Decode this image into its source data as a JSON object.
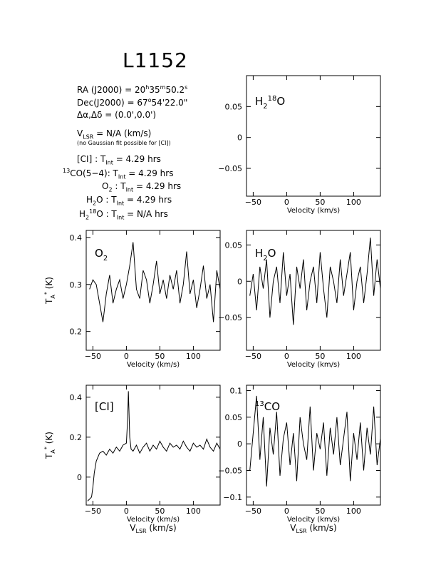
{
  "header": {
    "title": "L1152",
    "ra": "RA (J2000) =  20h35m50.2s",
    "dec": "Dec(J2000) =  67°54'22.0\"",
    "offset": "Δα,Δδ = (0.0',0.0')",
    "vlsr": "VLSR  = N/A  (km/s)",
    "note": "(no Gaussian fit possible for [CI])",
    "tint_lines": [
      "[CI] : TInt = 4.29 hrs",
      "13CO(5-4): TInt = 4.29 hrs",
      "O2 : TInt = 4.29 hrs",
      "H2O : TInt = 4.29 hrs",
      "H218O : TInt = N/A hrs"
    ]
  },
  "chart_data": [
    {
      "type": "line",
      "panel": "H2_18O",
      "label": "H218O",
      "xlabel": "Velocity (km/s)",
      "ylabel": "",
      "xlim": [
        -60,
        140
      ],
      "ylim": [
        -0.095,
        0.1
      ],
      "xticks": [
        -50,
        0,
        50,
        100
      ],
      "yticks": [
        0.05,
        0,
        -0.05
      ],
      "ytick_labels": [
        "0.05",
        "0",
        "−0.05"
      ],
      "x": [],
      "y": []
    },
    {
      "type": "line",
      "panel": "O2",
      "label": "O2",
      "xlabel": "Velocity (km/s)",
      "ylabel": "TA* (K)",
      "xlim": [
        -60,
        140
      ],
      "ylim": [
        0.16,
        0.415
      ],
      "xticks": [
        -50,
        0,
        50,
        100
      ],
      "yticks": [
        0.4,
        0.3,
        0.2
      ],
      "ytick_labels": [
        "0.4",
        "0.3",
        "0.2"
      ],
      "x": [
        -55,
        -50,
        -45,
        -40,
        -35,
        -30,
        -25,
        -20,
        -15,
        -10,
        -5,
        0,
        5,
        10,
        15,
        20,
        25,
        30,
        35,
        40,
        45,
        50,
        55,
        60,
        65,
        70,
        75,
        80,
        85,
        90,
        95,
        100,
        105,
        110,
        115,
        120,
        125,
        130,
        135,
        140
      ],
      "y": [
        0.29,
        0.31,
        0.3,
        0.26,
        0.22,
        0.28,
        0.32,
        0.26,
        0.29,
        0.31,
        0.27,
        0.3,
        0.34,
        0.39,
        0.29,
        0.27,
        0.33,
        0.31,
        0.26,
        0.3,
        0.35,
        0.28,
        0.31,
        0.27,
        0.32,
        0.29,
        0.33,
        0.26,
        0.3,
        0.37,
        0.28,
        0.31,
        0.25,
        0.29,
        0.34,
        0.27,
        0.3,
        0.22,
        0.33,
        0.29
      ]
    },
    {
      "type": "line",
      "panel": "H2O",
      "label": "H2O",
      "xlabel": "Velocity (km/s)",
      "ylabel": "",
      "xlim": [
        -60,
        140
      ],
      "ylim": [
        -0.095,
        0.07
      ],
      "xticks": [
        -50,
        0,
        50,
        100
      ],
      "yticks": [
        0.05,
        0,
        -0.05
      ],
      "ytick_labels": [
        "0.05",
        "0",
        "−0.05"
      ],
      "x": [
        -55,
        -50,
        -45,
        -40,
        -35,
        -30,
        -25,
        -20,
        -15,
        -10,
        -5,
        0,
        5,
        10,
        15,
        20,
        25,
        30,
        35,
        40,
        45,
        50,
        55,
        60,
        65,
        70,
        75,
        80,
        85,
        90,
        95,
        100,
        105,
        110,
        115,
        120,
        125,
        130,
        135,
        140
      ],
      "y": [
        -0.02,
        0.01,
        -0.04,
        0.02,
        -0.01,
        0.03,
        -0.05,
        0.0,
        0.02,
        -0.03,
        0.04,
        -0.02,
        0.01,
        -0.06,
        0.02,
        -0.01,
        0.03,
        -0.04,
        0.0,
        0.02,
        -0.03,
        0.04,
        -0.01,
        -0.05,
        0.02,
        0.0,
        -0.03,
        0.03,
        -0.02,
        0.01,
        0.04,
        -0.04,
        0.0,
        0.02,
        -0.03,
        0.01,
        0.06,
        -0.02,
        0.03,
        -0.01
      ]
    },
    {
      "type": "line",
      "panel": "CI",
      "label": "[CI]",
      "xlabel": "Velocity (km/s)",
      "ylabel": "TA* (K)",
      "xlim": [
        -60,
        140
      ],
      "ylim": [
        -0.14,
        0.46
      ],
      "xticks": [
        -50,
        0,
        50,
        100
      ],
      "yticks": [
        0.4,
        0.2,
        0,
        -0.2
      ],
      "ytick_labels": [
        "0.4",
        "0.2",
        "0",
        ""
      ],
      "x": [
        -58,
        -55,
        -52,
        -50,
        -48,
        -45,
        -40,
        -35,
        -30,
        -25,
        -20,
        -15,
        -10,
        -5,
        0,
        2,
        3,
        5,
        7,
        10,
        15,
        20,
        25,
        30,
        35,
        40,
        45,
        50,
        55,
        60,
        65,
        70,
        75,
        80,
        85,
        90,
        95,
        100,
        105,
        110,
        115,
        120,
        125,
        130,
        135,
        140
      ],
      "y": [
        -0.12,
        -0.11,
        -0.1,
        -0.05,
        0.02,
        0.08,
        0.12,
        0.13,
        0.11,
        0.14,
        0.12,
        0.15,
        0.13,
        0.16,
        0.17,
        0.3,
        0.43,
        0.2,
        0.14,
        0.13,
        0.16,
        0.12,
        0.15,
        0.17,
        0.13,
        0.16,
        0.14,
        0.18,
        0.15,
        0.13,
        0.17,
        0.15,
        0.16,
        0.14,
        0.18,
        0.15,
        0.13,
        0.17,
        0.15,
        0.16,
        0.14,
        0.19,
        0.15,
        0.13,
        0.17,
        0.14
      ]
    },
    {
      "type": "line",
      "panel": "13CO",
      "label": "13CO",
      "xlabel": "Velocity (km/s)",
      "ylabel": "",
      "xlim": [
        -60,
        140
      ],
      "ylim": [
        -0.115,
        0.11
      ],
      "xticks": [
        -50,
        0,
        50,
        100
      ],
      "yticks": [
        0.1,
        0.05,
        0,
        -0.05,
        -0.1
      ],
      "ytick_labels": [
        "0.1",
        "0.05",
        "0",
        "−0.05",
        "−0.1"
      ],
      "x": [
        -55,
        -50,
        -45,
        -40,
        -35,
        -30,
        -25,
        -20,
        -15,
        -10,
        -5,
        0,
        5,
        10,
        15,
        20,
        25,
        30,
        35,
        40,
        45,
        50,
        55,
        60,
        65,
        70,
        75,
        80,
        85,
        90,
        95,
        100,
        105,
        110,
        115,
        120,
        125,
        130,
        135,
        140
      ],
      "y": [
        -0.05,
        0.02,
        0.09,
        -0.03,
        0.05,
        -0.08,
        0.03,
        -0.02,
        0.06,
        -0.06,
        0.01,
        0.04,
        -0.04,
        0.02,
        -0.07,
        0.05,
        0.0,
        -0.03,
        0.07,
        -0.05,
        0.02,
        -0.01,
        0.04,
        -0.06,
        0.03,
        -0.02,
        0.05,
        -0.04,
        0.01,
        0.06,
        -0.07,
        0.02,
        -0.03,
        0.04,
        -0.05,
        0.03,
        -0.02,
        0.07,
        -0.04,
        0.01
      ]
    }
  ],
  "shared": {
    "vlsr_axis_label": "VLSR (km/s)"
  }
}
